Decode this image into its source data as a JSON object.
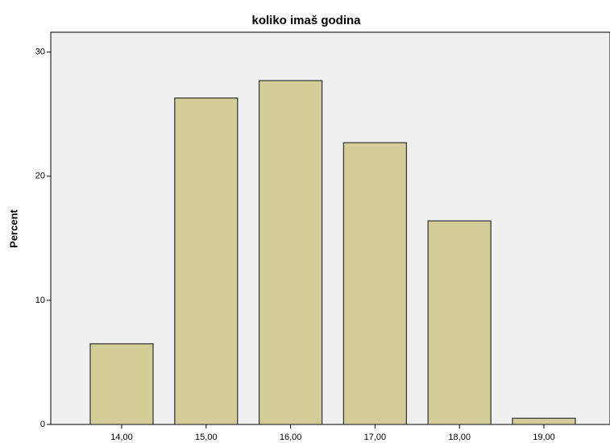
{
  "chart_data": {
    "type": "bar",
    "title": "koliko imaš godina",
    "y_label": "Percent",
    "categories": [
      "14,00",
      "15,00",
      "16,00",
      "17,00",
      "18,00",
      "19,00"
    ],
    "values": [
      6.5,
      26.3,
      27.7,
      22.7,
      16.4,
      0.5
    ],
    "color": "#d3ce97",
    "ylim": [
      0,
      31.6
    ],
    "yticks": [
      0,
      10,
      20,
      30
    ],
    "grid": false
  }
}
